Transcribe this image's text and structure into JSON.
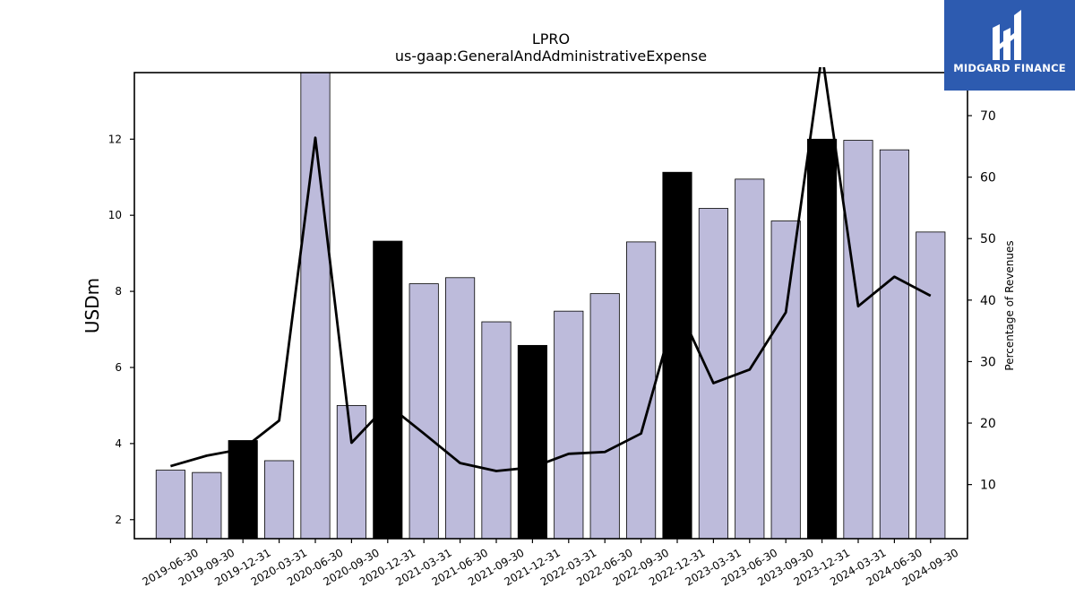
{
  "chart_data": {
    "type": "bar",
    "title": "LPRO",
    "subtitle": "us-gaap:GeneralAndAdministrativeExpense",
    "ylabel": "USDm",
    "y2label": "Percentage of Revenues",
    "ylim": [
      1.5,
      13.75
    ],
    "y2lim": [
      1.2,
      77.0
    ],
    "yticks": [
      "2",
      "4",
      "6",
      "8",
      "10",
      "12"
    ],
    "y2ticks": [
      "10",
      "20",
      "30",
      "40",
      "50",
      "60",
      "70"
    ],
    "categories": [
      "2019-06-30",
      "2019-09-30",
      "2019-12-31",
      "2020-03-31",
      "2020-06-30",
      "2020-09-30",
      "2020-12-31",
      "2021-03-31",
      "2021-06-30",
      "2021-09-30",
      "2021-12-31",
      "2022-03-31",
      "2022-06-30",
      "2022-09-30",
      "2022-12-31",
      "2023-03-31",
      "2023-06-30",
      "2023-09-30",
      "2023-12-31",
      "2024-03-31",
      "2024-06-30",
      "2024-09-30"
    ],
    "series": [
      {
        "type": "bar",
        "values": [
          3.3,
          3.24,
          4.08,
          3.55,
          13.8,
          5.0,
          9.32,
          8.2,
          8.36,
          7.2,
          6.58,
          7.48,
          7.94,
          9.3,
          11.13,
          10.18,
          10.95,
          9.85,
          12.0,
          11.97,
          11.72,
          9.56
        ],
        "highlight": [
          false,
          false,
          true,
          false,
          false,
          false,
          true,
          false,
          false,
          false,
          true,
          false,
          false,
          false,
          true,
          false,
          false,
          false,
          true,
          false,
          false,
          false
        ]
      },
      {
        "type": "line",
        "axis": "right",
        "values": [
          13.0,
          14.7,
          15.8,
          20.4,
          66.4,
          16.8,
          23.0,
          18.3,
          13.5,
          12.2,
          12.8,
          15.0,
          15.3,
          18.3,
          39.2,
          26.5,
          28.7,
          38.0,
          80.0,
          39.0,
          43.8,
          40.7
        ]
      }
    ],
    "colors": {
      "bar": "#bdbbdb",
      "highlight": "#000000",
      "line": "#000000"
    },
    "grid": false
  },
  "logo": {
    "text": "MIDGARD FINANCE",
    "icon": "midgard-logo-icon",
    "background": "#2d5bb0"
  }
}
